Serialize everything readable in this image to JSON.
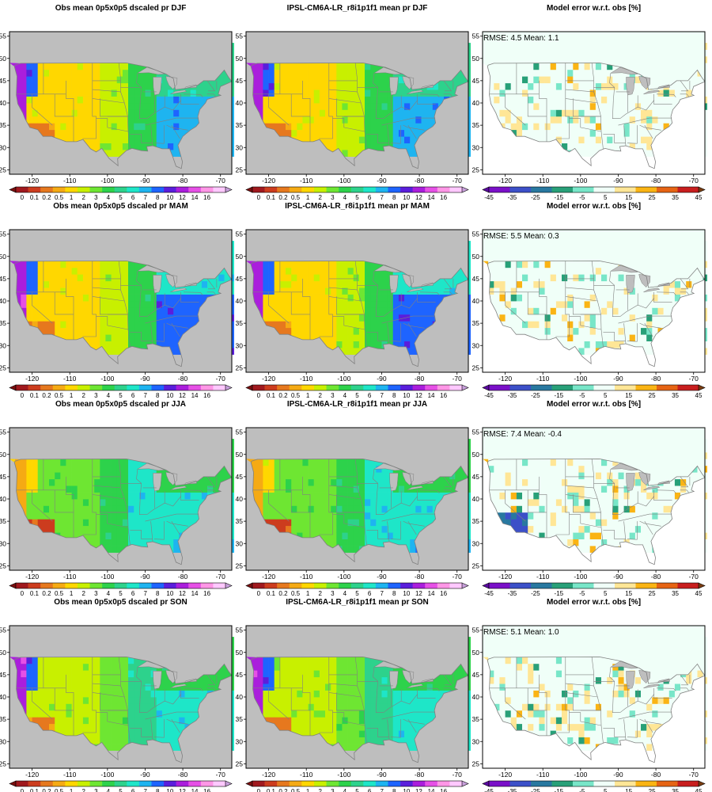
{
  "figure": {
    "panels": [
      {
        "title": "Obs mean 0p5x0p5 dscaled pr DJF",
        "kind": "obs",
        "season": "DJF"
      },
      {
        "title": "IPSL-CM6A-LR_r8i1p1f1 mean pr DJF",
        "kind": "model",
        "season": "DJF"
      },
      {
        "title": "Model error w.r.t. obs [%]",
        "kind": "error",
        "season": "DJF",
        "stats": "RMSE: 4.5  Mean: 1.1"
      },
      {
        "title": "Obs mean 0p5x0p5 dscaled pr MAM",
        "kind": "obs",
        "season": "MAM"
      },
      {
        "title": "IPSL-CM6A-LR_r8i1p1f1 mean pr MAM",
        "kind": "model",
        "season": "MAM"
      },
      {
        "title": "Model error w.r.t. obs [%]",
        "kind": "error",
        "season": "MAM",
        "stats": "RMSE: 5.5  Mean: 0.3"
      },
      {
        "title": "Obs mean 0p5x0p5 dscaled pr JJA",
        "kind": "obs",
        "season": "JJA"
      },
      {
        "title": "IPSL-CM6A-LR_r8i1p1f1 mean pr JJA",
        "kind": "model",
        "season": "JJA"
      },
      {
        "title": "Model error w.r.t. obs [%]",
        "kind": "error",
        "season": "JJA",
        "stats": "RMSE: 7.4  Mean: -0.4"
      },
      {
        "title": "Obs mean 0p5x0p5 dscaled pr SON",
        "kind": "obs",
        "season": "SON"
      },
      {
        "title": "IPSL-CM6A-LR_r8i1p1f1 mean pr SON",
        "kind": "model",
        "season": "SON"
      },
      {
        "title": "Model error w.r.t. obs [%]",
        "kind": "error",
        "season": "SON",
        "stats": "RMSE: 5.1  Mean: 1.0"
      }
    ],
    "lon_ticks": [
      "-120",
      "-110",
      "-100",
      "-90",
      "-80",
      "-70"
    ],
    "lon_values": [
      -120,
      -110,
      -100,
      -90,
      -80,
      -70
    ],
    "lat_ticks": [
      "55",
      "50",
      "45",
      "40",
      "35",
      "30",
      "25"
    ],
    "lat_values": [
      55,
      50,
      45,
      40,
      35,
      30,
      25
    ],
    "map_extent": {
      "lon_min": -126,
      "lon_max": -67,
      "lat_min": 24,
      "lat_max": 56
    },
    "precip_colorbar": {
      "labels": [
        "0",
        "0.1",
        "0.2",
        "0.5",
        "1",
        "2",
        "3",
        "4",
        "5",
        "6",
        "7",
        "8",
        "10",
        "12",
        "14",
        "16"
      ],
      "colors": [
        "#a0191e",
        "#cc3c1e",
        "#e6781e",
        "#f5aa14",
        "#ffd700",
        "#c8f000",
        "#6ee632",
        "#2dd24b",
        "#2dd28c",
        "#1ee6c8",
        "#1eb4f0",
        "#1e64ff",
        "#5a1edc",
        "#aa1edc",
        "#e650e6",
        "#ff96e6",
        "#ffc8ff"
      ],
      "under_color": "#7a1010",
      "over_color": "#c8a0dc"
    },
    "error_colorbar": {
      "labels": [
        "-45",
        "-35",
        "-25",
        "-15",
        "-5",
        "5",
        "15",
        "25",
        "35",
        "45"
      ],
      "colors": [
        "#7a10c8",
        "#3c50c8",
        "#2878a0",
        "#28a078",
        "#78e6c8",
        "#f0fff8",
        "#ffe696",
        "#fab414",
        "#e66414",
        "#c81e1e"
      ],
      "under_color": "#5a0aa0",
      "over_color": "#7a3c10"
    },
    "colors": {
      "land_gray": "#bebebe",
      "border": "#808080",
      "frame": "#000000"
    }
  }
}
